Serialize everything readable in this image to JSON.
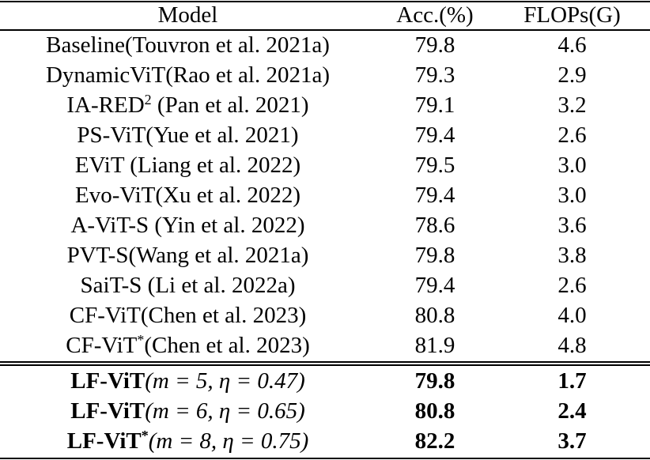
{
  "table": {
    "header": [
      "Model",
      "Acc.(%)",
      "FLOPs(G)"
    ],
    "rows": [
      [
        {
          "name": "Baseline(Touvron et al. 2021a)"
        },
        "79.8",
        "4.6"
      ],
      [
        {
          "name": "DynamicViT(Rao et al. 2021a)"
        },
        "79.3",
        "2.9"
      ],
      [
        {
          "name": "IA-RED",
          "sup": "2",
          "rest": " (Pan et al. 2021)"
        },
        "79.1",
        "3.2"
      ],
      [
        {
          "name": "PS-ViT(Yue et al. 2021)"
        },
        "79.4",
        "2.6"
      ],
      [
        {
          "name": "EViT (Liang et al. 2022)"
        },
        "79.5",
        "3.0"
      ],
      [
        {
          "name": "Evo-ViT(Xu et al. 2022)"
        },
        "79.4",
        "3.0"
      ],
      [
        {
          "name": "A-ViT-S (Yin et al. 2022)"
        },
        "78.6",
        "3.6"
      ],
      [
        {
          "name": "PVT-S(Wang et al. 2021a)"
        },
        "79.8",
        "3.8"
      ],
      [
        {
          "name": "SaiT-S (Li et al. 2022a)"
        },
        "79.4",
        "2.6"
      ],
      [
        {
          "name": "CF-ViT(Chen et al. 2023)"
        },
        "80.8",
        "4.0"
      ],
      [
        {
          "name": "CF-ViT",
          "sup": "*",
          "rest": "(Chen et al. 2023)"
        },
        "81.9",
        "4.8"
      ]
    ],
    "highlighted_rows": [
      [
        {
          "name": "LF-ViT",
          "rest": "(m = 5, η = 0.47)"
        },
        "79.8",
        "1.7"
      ],
      [
        {
          "name": "LF-ViT",
          "rest": "(m = 6, η = 0.65)"
        },
        "80.8",
        "2.4"
      ],
      [
        {
          "name": "LF-ViT",
          "sup": "*",
          "rest": "(m = 8, η = 0.75)"
        },
        "82.2",
        "3.7"
      ]
    ]
  }
}
